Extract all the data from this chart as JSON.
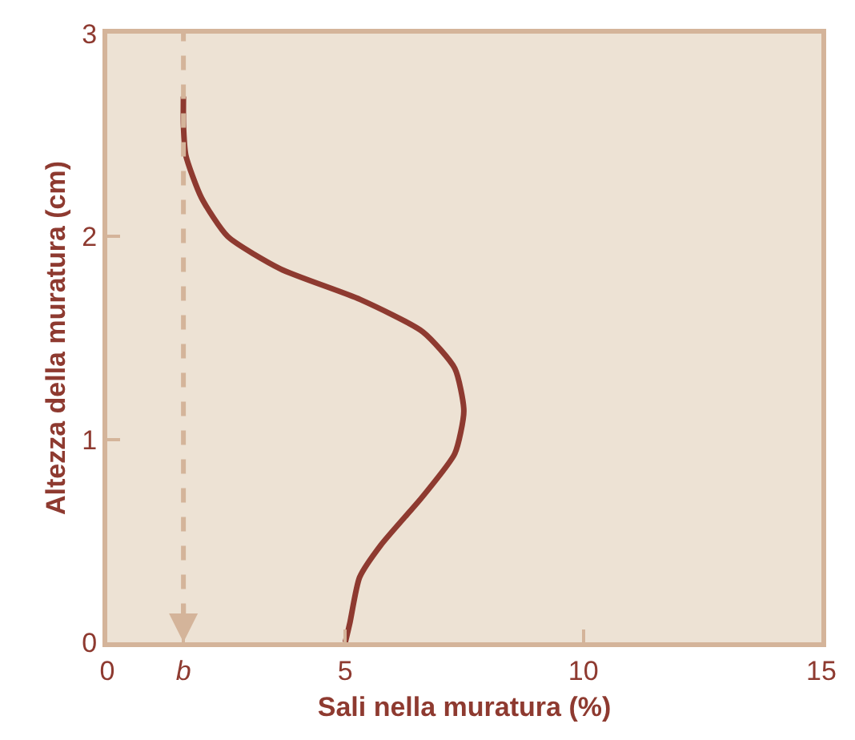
{
  "chart_data": {
    "type": "line",
    "xlabel": "Sali nella muratura (%)",
    "ylabel": "Altezza della muratura (cm)",
    "series": [
      {
        "color": "#8e3a30",
        "x": [
          5,
          5.1,
          5.3,
          5.75,
          6.63,
          7.3,
          7.49,
          7.3,
          6.63,
          5.31,
          3.64,
          2.53,
          1.98,
          1.65,
          1.6,
          1.6
        ],
        "values": [
          0,
          0.1,
          0.32,
          0.48,
          0.72,
          0.93,
          1.14,
          1.35,
          1.53,
          1.69,
          1.84,
          2.0,
          2.19,
          2.4,
          2.55,
          2.69
        ]
      }
    ],
    "xlim": [
      0,
      15
    ],
    "xticks": [
      0,
      {
        "value": 1.6,
        "label": "b"
      },
      5,
      10,
      15
    ],
    "ylim": [
      0,
      3
    ],
    "yticks": [
      0,
      1,
      2,
      3
    ],
    "ref_lines": [
      {
        "axis": "x",
        "value": 1.6,
        "color": "#d4b49a",
        "line_style": "dashed"
      }
    ],
    "grid": false,
    "legend": false,
    "marker": "none",
    "line_style": "solid"
  }
}
